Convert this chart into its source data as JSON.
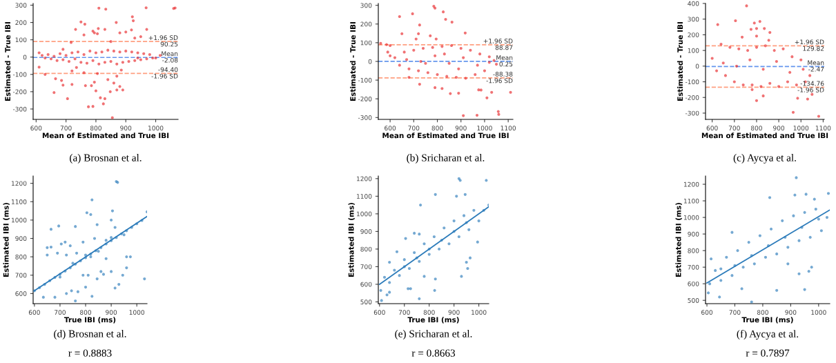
{
  "chart_data": [
    {
      "type": "scatter",
      "xlabel": "Mean of Estimated and True IBI",
      "ylabel": "Estimated - True IBI",
      "xlim": [
        590,
        1075
      ],
      "ylim": [
        -360,
        310
      ],
      "xticks": [
        600,
        700,
        800,
        900,
        1000
      ],
      "yticks": [
        -300,
        -200,
        -100,
        0,
        100,
        200,
        300
      ],
      "series": [
        {
          "color": "#e8262a",
          "marker": "circle",
          "x": [
            810,
            833,
            968,
            1060,
            1065,
            750,
            763,
            868,
            922,
            925,
            732,
            808,
            790,
            830,
            919,
            795,
            805,
            880,
            900,
            950,
            760,
            930,
            970,
            850,
            717,
            720,
            735,
            760,
            805,
            610,
            630,
            665,
            660,
            685,
            690,
            705,
            720,
            765,
            785,
            795,
            800,
            815,
            830,
            825,
            775,
            790,
            848,
            860,
            870,
            890,
            880,
            855,
            840,
            870,
            885,
            610,
            690,
            940,
            1000,
            1015,
            620,
            630,
            640,
            650,
            660,
            670,
            680,
            690,
            700,
            710,
            720,
            730,
            740,
            750,
            760,
            770,
            780,
            790,
            800,
            810,
            820,
            830,
            840,
            850,
            860,
            870,
            880,
            890,
            900,
            910,
            920,
            930,
            940,
            950,
            960,
            970,
            980,
            990
          ],
          "values": [
            283,
            277,
            285,
            281,
            284,
            203,
            190,
            200,
            233,
            210,
            160,
            165,
            150,
            160,
            157,
            140,
            135,
            140,
            145,
            118,
            128,
            110,
            160,
            90,
            85,
            -80,
            -60,
            -90,
            -95,
            -58,
            -100,
            -125,
            -205,
            -135,
            -162,
            -240,
            -158,
            -165,
            -165,
            -145,
            -195,
            -235,
            -240,
            -270,
            -287,
            -285,
            -200,
            -150,
            -190,
            -190,
            -170,
            -350,
            -130,
            -110,
            -75,
            25,
            45,
            -5,
            -5,
            10,
            10,
            -5,
            15,
            -10,
            5,
            -20,
            20,
            -15,
            10,
            -25,
            25,
            -10,
            30,
            -30,
            15,
            -35,
            35,
            -20,
            25,
            -40,
            30,
            -30,
            40,
            -25,
            35,
            -40,
            30,
            -30,
            35,
            -25,
            30,
            -20,
            25,
            -15,
            20,
            -10,
            15,
            -5
          ]
        }
      ],
      "ref_lines": [
        {
          "axis": "y",
          "value": 90.25,
          "label": "+1.96 SD\n90.25",
          "color": "#ff9f80",
          "line_style": "dashed"
        },
        {
          "axis": "y",
          "value": -2.08,
          "label": "Mean\n-2.08",
          "color": "#6495ed",
          "line_style": "dashed"
        },
        {
          "axis": "y",
          "value": -94.4,
          "label": "-94.40\n-1.96 SD",
          "color": "#ff9f80",
          "line_style": "dashed"
        }
      ],
      "annotations": [
        "(a) Brosnan et al."
      ]
    },
    {
      "type": "scatter",
      "xlabel": "Mean of Estimated and True IBI",
      "ylabel": "Estimated - True IBI",
      "xlim": [
        550,
        1120
      ],
      "ylim": [
        -310,
        310
      ],
      "xticks": [
        600,
        700,
        800,
        900,
        1000,
        1100
      ],
      "yticks": [
        -300,
        -200,
        -100,
        0,
        100,
        200,
        300
      ],
      "series": [
        {
          "color": "#e8262a",
          "marker": "circle",
          "x": [
            560,
            585,
            600,
            640,
            650,
            695,
            725,
            710,
            720,
            770,
            785,
            790,
            825,
            835,
            862,
            918,
            795,
            680,
            725,
            790,
            820,
            855,
            890,
            975,
            985,
            1010,
            1030,
            1110,
            910,
            968,
            1058,
            1060,
            1020,
            1040,
            1050,
            590,
            600,
            620,
            640,
            660,
            680,
            700,
            720,
            740,
            760,
            780,
            800,
            820,
            840,
            860,
            880,
            900,
            920,
            940,
            960,
            980,
            1000,
            1020,
            670,
            730,
            790,
            850,
            910,
            970,
            750,
            830,
            890
          ],
          "values": [
            97,
            90,
            85,
            240,
            148,
            255,
            195,
            120,
            148,
            137,
            295,
            285,
            265,
            225,
            210,
            152,
            120,
            -85,
            -122,
            -140,
            -145,
            -172,
            -170,
            -152,
            -153,
            -195,
            -165,
            -165,
            -290,
            -288,
            -268,
            -283,
            -5,
            5,
            -15,
            50,
            30,
            20,
            -20,
            50,
            -40,
            60,
            -50,
            70,
            -60,
            75,
            -70,
            80,
            -80,
            85,
            -85,
            70,
            -90,
            60,
            -70,
            40,
            -50,
            25,
            10,
            0,
            30,
            -10,
            20,
            -20,
            -10,
            40,
            -40
          ]
        }
      ],
      "ref_lines": [
        {
          "axis": "y",
          "value": 88.87,
          "label": "+1.96 SD\n88.87",
          "color": "#ff9f80",
          "line_style": "dashed"
        },
        {
          "axis": "y",
          "value": 0.25,
          "label": "Mean\n0.25",
          "color": "#6495ed",
          "line_style": "dashed"
        },
        {
          "axis": "y",
          "value": -88.38,
          "label": "-88.38\n-1.96 SD",
          "color": "#ff9f80",
          "line_style": "dashed"
        }
      ],
      "annotations": [
        "(b) Sricharan et al."
      ]
    },
    {
      "type": "scatter",
      "xlabel": "Mean of Estimated and True IBI",
      "ylabel": "Estimated - True IBI",
      "xlim": [
        570,
        1105
      ],
      "ylim": [
        -340,
        400
      ],
      "xticks": [
        600,
        700,
        800,
        900,
        1000,
        1100
      ],
      "yticks": [
        -300,
        -200,
        -100,
        0,
        100,
        200,
        300,
        400
      ],
      "series": [
        {
          "color": "#e8262a",
          "marker": "circle",
          "x": [
            625,
            705,
            755,
            790,
            815,
            800,
            835,
            860,
            855,
            735,
            775,
            800,
            965,
            1080,
            800,
            985,
            1030,
            1050,
            780,
            830,
            600,
            620,
            640,
            660,
            680,
            700,
            720,
            740,
            760,
            780,
            800,
            820,
            840,
            860,
            880,
            900,
            920,
            940,
            960,
            980,
            1000,
            1020,
            1040,
            650,
            710,
            770,
            830,
            890,
            950,
            1010
          ],
          "values": [
            265,
            290,
            385,
            275,
            285,
            240,
            240,
            215,
            165,
            185,
            235,
            192,
            -295,
            -320,
            -220,
            -205,
            -210,
            -180,
            -150,
            -190,
            50,
            -30,
            140,
            -60,
            120,
            -100,
            110,
            -120,
            100,
            -120,
            120,
            -130,
            130,
            -110,
            100,
            -130,
            110,
            -100,
            60,
            -120,
            40,
            -100,
            -60,
            20,
            0,
            40,
            -20,
            30,
            -40,
            -20
          ]
        }
      ],
      "ref_lines": [
        {
          "axis": "y",
          "value": 129.82,
          "label": "+1.96 SD\n129.82",
          "color": "#ff9f80",
          "line_style": "dashed"
        },
        {
          "axis": "y",
          "value": -2.47,
          "label": "Mean\n-2.47",
          "color": "#6495ed",
          "line_style": "dashed"
        },
        {
          "axis": "y",
          "value": -134.76,
          "label": "-134.76\n-1.96 SD",
          "color": "#ff9f80",
          "line_style": "dashed"
        }
      ],
      "annotations": [
        "(c) Aycya et al."
      ]
    },
    {
      "type": "scatter",
      "xlabel": "True IBI (ms)",
      "ylabel": "Estimated IBI (ms)",
      "xlim": [
        595,
        1040
      ],
      "ylim": [
        545,
        1240
      ],
      "xticks": [
        600,
        700,
        800,
        900,
        1000
      ],
      "yticks": [
        600,
        700,
        800,
        900,
        1000,
        1100,
        1200
      ],
      "series": [
        {
          "color": "#2b7bba",
          "marker": "circle",
          "x": [
            665,
            695,
            760,
            650,
            650,
            665,
            690,
            705,
            720,
            725,
            740,
            765,
            805,
            820,
            845,
            835,
            790,
            920,
            925,
            825,
            905,
            900,
            915,
            635,
            680,
            725,
            745,
            760,
            770,
            800,
            825,
            790,
            810,
            845,
            870,
            915,
            930,
            945,
            960,
            975,
            960,
            900,
            1030,
            880,
            860,
            600,
            620,
            640,
            660,
            680,
            700,
            720,
            740,
            760,
            780,
            800,
            820,
            840,
            860,
            880,
            900,
            920,
            940,
            960,
            980,
            1000,
            1020,
            1040,
            700,
            750,
            800,
            850,
            900,
            950,
            820,
            880
          ],
          "values": [
            950,
            968,
            965,
            850,
            810,
            853,
            820,
            870,
            880,
            810,
            860,
            820,
            1040,
            1030,
            975,
            900,
            880,
            1210,
            1205,
            1110,
            1050,
            1000,
            960,
            580,
            580,
            600,
            615,
            560,
            610,
            635,
            585,
            700,
            700,
            680,
            705,
            630,
            650,
            700,
            740,
            800,
            800,
            720,
            680,
            790,
            720,
            615,
            632,
            650,
            670,
            688,
            705,
            722,
            740,
            760,
            778,
            795,
            815,
            833,
            850,
            870,
            888,
            905,
            925,
            942,
            960,
            980,
            998,
            1045,
            690,
            765,
            810,
            830,
            905,
            920,
            800,
            890
          ]
        },
        {
          "type": "line",
          "color": "#2b7bba",
          "x": [
            600,
            1040
          ],
          "values": [
            615,
            1020
          ]
        }
      ],
      "annotations": [
        "(d) Brosnan et al.",
        "r = 0.8883"
      ]
    },
    {
      "type": "scatter",
      "xlabel": "True IBI (ms)",
      "ylabel": "Estimated IBI (ms)",
      "xlim": [
        595,
        1040
      ],
      "ylim": [
        490,
        1215
      ],
      "xticks": [
        600,
        700,
        800,
        900,
        1000
      ],
      "yticks": [
        500,
        600,
        700,
        800,
        900,
        1000,
        1100,
        1200
      ],
      "series": [
        {
          "color": "#2b7bba",
          "marker": "circle",
          "x": [
            760,
            608,
            605,
            630,
            640,
            725,
            825,
            822,
            780,
            930,
            955,
            950,
            965,
            995,
            765,
            825,
            910,
            920,
            925,
            945,
            1030,
            640,
            670,
            705,
            740,
            760,
            715,
            620,
            640,
            660,
            680,
            700,
            720,
            740,
            760,
            780,
            800,
            820,
            840,
            860,
            880,
            900,
            920,
            940,
            960,
            980,
            1000,
            1020,
            1040,
            700,
            750,
            800,
            850,
            900,
            950
          ],
          "values": [
            518,
            508,
            565,
            540,
            555,
            575,
            630,
            565,
            645,
            645,
            690,
            725,
            750,
            840,
            1050,
            1110,
            1100,
            1200,
            1190,
            1110,
            1190,
            725,
            785,
            860,
            890,
            885,
            575,
            640,
            610,
            680,
            650,
            740,
            690,
            780,
            730,
            830,
            770,
            870,
            800,
            920,
            830,
            960,
            870,
            990,
            910,
            1020,
            960,
            1020,
            1050,
            700,
            750,
            800,
            850,
            900,
            950
          ]
        },
        {
          "type": "line",
          "color": "#2b7bba",
          "x": [
            600,
            1040
          ],
          "values": [
            600,
            1040
          ]
        }
      ],
      "annotations": [
        "(e) Sricharan et al.",
        "r = 0.8663"
      ]
    },
    {
      "type": "scatter",
      "xlabel": "True IBI (ms)",
      "ylabel": "Estimated IBI (ms)",
      "xlim": [
        595,
        1040
      ],
      "ylim": [
        480,
        1250
      ],
      "xticks": [
        600,
        700,
        800,
        900,
        1000
      ],
      "yticks": [
        500,
        600,
        700,
        800,
        900,
        1000,
        1100,
        1200
      ],
      "series": [
        {
          "color": "#2b7bba",
          "marker": "circle",
          "x": [
            760,
            850,
            950,
            645,
            825,
            920,
            955,
            985,
            1035,
            915,
            690,
            605,
            615,
            650,
            725,
            975,
            965,
            930,
            890,
            610,
            630,
            650,
            670,
            690,
            710,
            730,
            750,
            770,
            790,
            810,
            830,
            850,
            870,
            890,
            910,
            930,
            950,
            970,
            990,
            1010,
            1030,
            700,
            760,
            820,
            880,
            940,
            1000
          ],
          "values": [
            490,
            560,
            565,
            520,
            1120,
            1240,
            1140,
            1110,
            1145,
            1135,
            910,
            545,
            750,
            690,
            570,
            700,
            675,
            660,
            720,
            600,
            680,
            620,
            760,
            650,
            800,
            700,
            850,
            720,
            890,
            760,
            930,
            780,
            980,
            820,
            1010,
            860,
            1030,
            880,
            1050,
            920,
            1000,
            710,
            770,
            830,
            880,
            940,
            990
          ]
        },
        {
          "type": "line",
          "color": "#2b7bba",
          "x": [
            600,
            1040
          ],
          "values": [
            605,
            1045
          ]
        }
      ],
      "annotations": [
        "(f) Aycya et al.",
        "r = 0.7897"
      ]
    }
  ]
}
